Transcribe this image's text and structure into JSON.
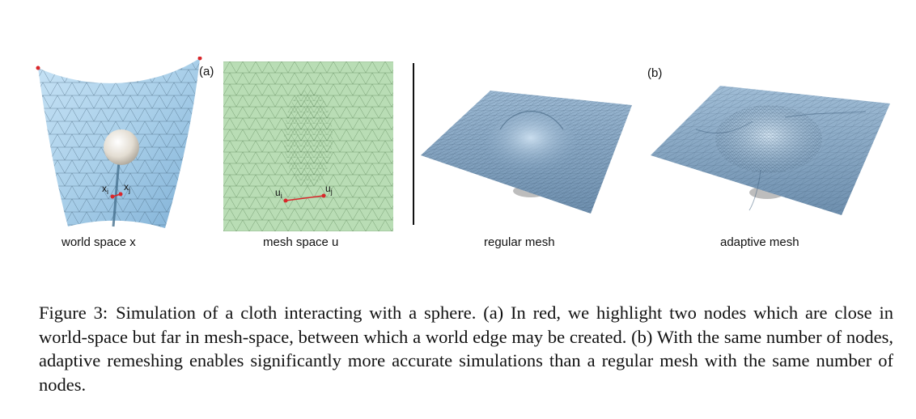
{
  "figure": {
    "panel_a_tag": "(a)",
    "panel_b_tag": "(b)",
    "sub_captions": {
      "world_space": "world space x",
      "mesh_space": "mesh space u",
      "regular_mesh": "regular mesh",
      "adaptive_mesh": "adaptive mesh"
    },
    "node_labels": {
      "x_i": "x",
      "x_j": "x",
      "u_i": "u",
      "u_j": "u",
      "sub_i": "i",
      "sub_j": "j"
    },
    "colors": {
      "cloth_blue": "#a9cfe9",
      "mesh_green": "#b9ddb5",
      "plane_blue": "#7f9fbd",
      "highlight_red": "#d9262a"
    }
  },
  "caption": {
    "figure_number": "Figure 3:",
    "text": "Simulation of a cloth interacting with a sphere. (a) In red, we highlight two nodes which are close in world-space but far in mesh-space, between which a world edge may be created. (b) With the same number of nodes, adaptive remeshing enables significantly more accurate simulations than a regular mesh with the same number of nodes."
  }
}
